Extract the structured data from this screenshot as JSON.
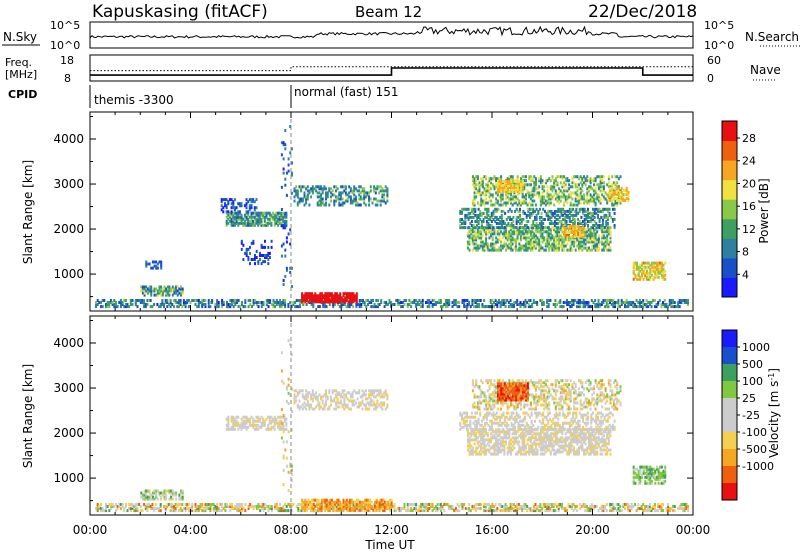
{
  "header": {
    "station": "Kapuskasing (fitACF)",
    "beam": "Beam 12",
    "date": "22/Dec/2018"
  },
  "top_panels": {
    "nsky": {
      "label": "N.Sky",
      "right_label": "N.Search",
      "ticks_left": [
        "10^5",
        "10^0"
      ],
      "ticks_right": [
        "10^5",
        "10^0"
      ]
    },
    "freq": {
      "label_line1": "Freq.",
      "label_line2": "[MHz]",
      "right_label": "Nave",
      "ticks_left": [
        "18",
        "8"
      ],
      "ticks_right": [
        "60",
        "0"
      ],
      "freq_steps": [
        {
          "start_h": 0.0,
          "end_h": 12.0,
          "value_mhz": 10.3
        },
        {
          "start_h": 12.0,
          "end_h": 22.0,
          "value_mhz": 13.0
        },
        {
          "start_h": 22.0,
          "end_h": 24.0,
          "value_mhz": 10.3
        }
      ],
      "nave_steps": [
        {
          "start_h": 0.0,
          "end_h": 8.0,
          "value": 24
        },
        {
          "start_h": 8.0,
          "end_h": 24.0,
          "value": 33
        }
      ]
    },
    "cpid": {
      "label": "CPID",
      "modes": [
        {
          "start_h": 0.0,
          "text": "themis -3300"
        },
        {
          "start_h": 8.0,
          "text": "normal (fast) 151"
        }
      ]
    }
  },
  "x_axis": {
    "label": "Time UT",
    "ticks": [
      "00:00",
      "04:00",
      "08:00",
      "12:00",
      "16:00",
      "20:00",
      "00:00"
    ]
  },
  "colors": {
    "power": [
      "#1a1aff",
      "#1a4fcc",
      "#2e7fa0",
      "#3ea060",
      "#8ac84a",
      "#f0e040",
      "#f5a623",
      "#ee6010",
      "#e81010"
    ],
    "velocity": [
      "#e81010",
      "#ee6010",
      "#f5a623",
      "#f5d050",
      "#cccccc",
      "#cccccc",
      "#80c840",
      "#3ea060",
      "#1a4fcc",
      "#1a1aff"
    ]
  },
  "chart_data": [
    {
      "type": "heatmap",
      "title": "",
      "quantity": "Power",
      "xlabel": "",
      "ylabel": "Slant Range [km]",
      "xlim_hours": [
        0,
        24
      ],
      "ylim_km": [
        180,
        4600
      ],
      "yticks": [
        1000,
        2000,
        3000,
        4000
      ],
      "colorbar": {
        "label": "Power [dB]",
        "min": 0,
        "max": 31,
        "ticks": [
          "4",
          "8",
          "12",
          "16",
          "20",
          "24",
          "28"
        ]
      },
      "patches": [
        {
          "t0": 0.2,
          "t1": 23.8,
          "r0": 200,
          "r1": 420,
          "val": 9,
          "jitter": 6,
          "density": 0.55
        },
        {
          "t0": 8.4,
          "t1": 10.6,
          "r0": 350,
          "r1": 560,
          "val": 30,
          "jitter": 2,
          "density": 0.85
        },
        {
          "t0": 2.0,
          "t1": 3.7,
          "r0": 500,
          "r1": 700,
          "val": 12,
          "jitter": 8,
          "density": 0.7
        },
        {
          "t0": 2.2,
          "t1": 2.8,
          "r0": 1100,
          "r1": 1250,
          "val": 6,
          "jitter": 3,
          "density": 0.5
        },
        {
          "t0": 5.4,
          "t1": 7.8,
          "r0": 2050,
          "r1": 2350,
          "val": 10,
          "jitter": 6,
          "density": 0.7
        },
        {
          "t0": 5.2,
          "t1": 6.6,
          "r0": 2350,
          "r1": 2650,
          "val": 5,
          "jitter": 3,
          "density": 0.45
        },
        {
          "t0": 6.0,
          "t1": 7.2,
          "r0": 1200,
          "r1": 1700,
          "val": 4,
          "jitter": 3,
          "density": 0.25
        },
        {
          "t0": 8.1,
          "t1": 11.8,
          "r0": 2500,
          "r1": 2950,
          "val": 10,
          "jitter": 5,
          "density": 0.45
        },
        {
          "t0": 15.0,
          "t1": 20.7,
          "r0": 1500,
          "r1": 2000,
          "val": 14,
          "jitter": 6,
          "density": 0.6
        },
        {
          "t0": 14.7,
          "t1": 20.9,
          "r0": 2000,
          "r1": 2450,
          "val": 10,
          "jitter": 5,
          "density": 0.5
        },
        {
          "t0": 15.2,
          "t1": 21.1,
          "r0": 2500,
          "r1": 3150,
          "val": 14,
          "jitter": 6,
          "density": 0.45
        },
        {
          "t0": 16.2,
          "t1": 17.2,
          "r0": 2800,
          "r1": 3050,
          "val": 20,
          "jitter": 3,
          "density": 0.8
        },
        {
          "t0": 20.6,
          "t1": 21.4,
          "r0": 2600,
          "r1": 2900,
          "val": 20,
          "jitter": 3,
          "density": 0.7
        },
        {
          "t0": 21.6,
          "t1": 22.9,
          "r0": 850,
          "r1": 1250,
          "val": 20,
          "jitter": 5,
          "density": 0.6
        },
        {
          "t0": 18.8,
          "t1": 19.6,
          "r0": 1800,
          "r1": 2050,
          "val": 22,
          "jitter": 3,
          "density": 0.7
        },
        {
          "t0": 7.6,
          "t1": 8.0,
          "r0": 600,
          "r1": 4300,
          "val": 6,
          "jitter": 4,
          "density": 0.08
        }
      ]
    },
    {
      "type": "heatmap",
      "title": "",
      "quantity": "Velocity",
      "xlabel": "Time UT",
      "ylabel": "Slant Range [km]",
      "xlim_hours": [
        0,
        24
      ],
      "ylim_km": [
        180,
        4600
      ],
      "yticks": [
        1000,
        2000,
        3000,
        4000
      ],
      "colorbar": {
        "label": "Velocity [m s^-1]",
        "ticks": [
          "1000",
          "500",
          "100",
          "25",
          "-25",
          "-100",
          "-500",
          "-1000"
        ]
      },
      "patches": [
        {
          "t0": 0.2,
          "t1": 23.8,
          "r0": 200,
          "r1": 420,
          "val": 4,
          "jitter": 3,
          "density": 0.55
        },
        {
          "t0": 8.4,
          "t1": 12.0,
          "r0": 250,
          "r1": 520,
          "val": 2,
          "jitter": 1,
          "density": 0.7
        },
        {
          "t0": 2.0,
          "t1": 3.7,
          "r0": 500,
          "r1": 700,
          "val": 5,
          "jitter": 2,
          "density": 0.6
        },
        {
          "t0": 5.4,
          "t1": 7.8,
          "r0": 2050,
          "r1": 2350,
          "val": 4,
          "jitter": 1,
          "density": 0.6
        },
        {
          "t0": 8.1,
          "t1": 11.8,
          "r0": 2500,
          "r1": 2950,
          "val": 4,
          "jitter": 1,
          "density": 0.45
        },
        {
          "t0": 15.0,
          "t1": 20.7,
          "r0": 1500,
          "r1": 2050,
          "val": 4,
          "jitter": 1,
          "density": 0.6
        },
        {
          "t0": 14.7,
          "t1": 20.9,
          "r0": 2050,
          "r1": 2450,
          "val": 4,
          "jitter": 1,
          "density": 0.45
        },
        {
          "t0": 15.2,
          "t1": 21.1,
          "r0": 2500,
          "r1": 3150,
          "val": 4,
          "jitter": 2,
          "density": 0.4
        },
        {
          "t0": 16.2,
          "t1": 17.4,
          "r0": 2700,
          "r1": 3100,
          "val": 1,
          "jitter": 1,
          "density": 0.8
        },
        {
          "t0": 21.6,
          "t1": 22.9,
          "r0": 850,
          "r1": 1250,
          "val": 6,
          "jitter": 1,
          "density": 0.6
        },
        {
          "t0": 7.6,
          "t1": 8.0,
          "r0": 600,
          "r1": 4300,
          "val": 4,
          "jitter": 2,
          "density": 0.08
        }
      ]
    }
  ]
}
